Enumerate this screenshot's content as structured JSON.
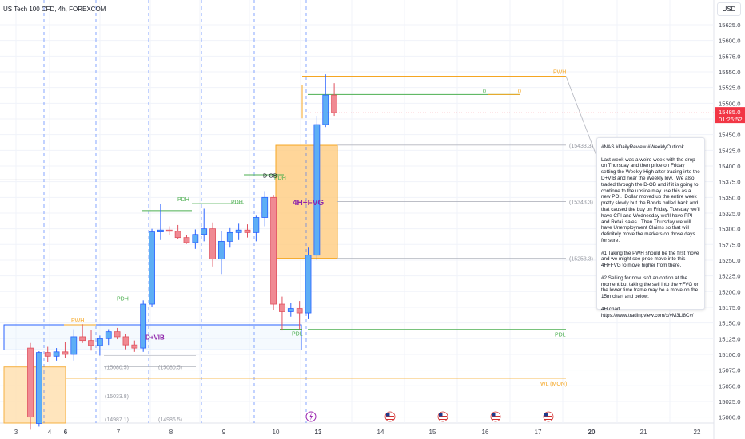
{
  "header": {
    "title": "US Tech 100 CFD, 4h, FOREXCOM",
    "currency": "USD"
  },
  "price_axis": {
    "ticks": [
      "15625.0",
      "15600.0",
      "15575.0",
      "15550.0",
      "15525.0",
      "15500.0",
      "15475.0",
      "15450.0",
      "15425.0",
      "15400.0",
      "15375.0",
      "15350.0",
      "15325.0",
      "15300.0",
      "15275.0",
      "15250.0",
      "15225.0",
      "15200.0",
      "15175.0",
      "15150.0",
      "15125.0",
      "15100.0",
      "15075.0",
      "15050.0",
      "15025.0",
      "15000.0"
    ],
    "current_price": "15485.0",
    "countdown": "01:26:52",
    "current_color": "#f23645"
  },
  "time_axis": {
    "labels": [
      "3",
      "4",
      "6",
      "7",
      "8",
      "9",
      "10",
      "13",
      "14",
      "15",
      "16",
      "17",
      "20",
      "21",
      "22"
    ]
  },
  "note": {
    "text": "#NAS #DailyReview #WeeklyOutlook\n\nLast week was a weird week with the drop on Thursday and then price on Friday setting the Weekly High after trading into the D+VIB and near the Weekly low.  We also traded through the D-OB and if it is going to continue to the upside may use this as a new POI.  Dollar moved up the entire week pretty slowly but the Bonds pulled back and that caused the buy on Friday. Tuesday we'll have CPI and Wednesday we'll have PPI and Retail sales.  Then Thursday we will have Unemployment Claims so that will definitely move the markets on those days for sure.\n\n#1 Taking the PWH should be the first move and we might see price move into this 4H+FVG to move higher from there.\n\n#2 Selling for now isn't an option at the moment but taking the sell into the +FVG on the lower time frame may be a move on the 15m chart and below.\n\n4H chart https://www.tradingview.com/x/vM3Li8Cv/"
  },
  "chart_data": {
    "type": "candlestick",
    "title": "US Tech 100 CFD, 4h, FOREXCOM",
    "timeframe": "4h",
    "ylim": [
      14984,
      15648
    ],
    "colors": {
      "up": "#5eaef5",
      "down": "#f08a93",
      "up_border": "#2962ff",
      "down_border": "#e0525f"
    },
    "candles": [
      {
        "o": 15110,
        "h": 15118,
        "l": 14980,
        "c": 15000
      },
      {
        "o": 14990,
        "h": 15105,
        "l": 14985,
        "c": 15103
      },
      {
        "o": 15103,
        "h": 15112,
        "l": 15088,
        "c": 15097
      },
      {
        "o": 15097,
        "h": 15110,
        "l": 15090,
        "c": 15104
      },
      {
        "o": 15104,
        "h": 15120,
        "l": 15094,
        "c": 15100
      },
      {
        "o": 15100,
        "h": 15140,
        "l": 15090,
        "c": 15128
      },
      {
        "o": 15128,
        "h": 15148,
        "l": 15118,
        "c": 15122
      },
      {
        "o": 15122,
        "h": 15139,
        "l": 15106,
        "c": 15114
      },
      {
        "o": 15114,
        "h": 15130,
        "l": 15098,
        "c": 15125
      },
      {
        "o": 15125,
        "h": 15140,
        "l": 15115,
        "c": 15136
      },
      {
        "o": 15136,
        "h": 15142,
        "l": 15124,
        "c": 15128
      },
      {
        "o": 15128,
        "h": 15132,
        "l": 15108,
        "c": 15115
      },
      {
        "o": 15115,
        "h": 15122,
        "l": 15104,
        "c": 15110
      },
      {
        "o": 15110,
        "h": 15186,
        "l": 15104,
        "c": 15180
      },
      {
        "o": 15180,
        "h": 15300,
        "l": 15176,
        "c": 15295
      },
      {
        "o": 15295,
        "h": 15340,
        "l": 15282,
        "c": 15298
      },
      {
        "o": 15298,
        "h": 15304,
        "l": 15290,
        "c": 15296
      },
      {
        "o": 15296,
        "h": 15306,
        "l": 15284,
        "c": 15286
      },
      {
        "o": 15286,
        "h": 15290,
        "l": 15276,
        "c": 15278
      },
      {
        "o": 15278,
        "h": 15299,
        "l": 15268,
        "c": 15291
      },
      {
        "o": 15291,
        "h": 15332,
        "l": 15280,
        "c": 15300
      },
      {
        "o": 15300,
        "h": 15310,
        "l": 15240,
        "c": 15252
      },
      {
        "o": 15252,
        "h": 15297,
        "l": 15228,
        "c": 15280
      },
      {
        "o": 15280,
        "h": 15301,
        "l": 15270,
        "c": 15294
      },
      {
        "o": 15294,
        "h": 15308,
        "l": 15282,
        "c": 15298
      },
      {
        "o": 15298,
        "h": 15307,
        "l": 15286,
        "c": 15294
      },
      {
        "o": 15294,
        "h": 15322,
        "l": 15280,
        "c": 15318
      },
      {
        "o": 15318,
        "h": 15360,
        "l": 15304,
        "c": 15350
      },
      {
        "o": 15350,
        "h": 15354,
        "l": 15170,
        "c": 15180
      },
      {
        "o": 15180,
        "h": 15192,
        "l": 15138,
        "c": 15168
      },
      {
        "o": 15168,
        "h": 15182,
        "l": 15160,
        "c": 15173
      },
      {
        "o": 15173,
        "h": 15185,
        "l": 15140,
        "c": 15166
      },
      {
        "o": 15166,
        "h": 15270,
        "l": 15156,
        "c": 15258
      },
      {
        "o": 15258,
        "h": 15480,
        "l": 15250,
        "c": 15466
      },
      {
        "o": 15466,
        "h": 15546,
        "l": 15462,
        "c": 15513
      },
      {
        "o": 15513,
        "h": 15532,
        "l": 15480,
        "c": 15485
      }
    ],
    "levels": [
      {
        "label": "PWH",
        "price": 15543
      },
      {
        "label": "PDL",
        "price": 15140
      },
      {
        "label": "WL (MON)",
        "price": 15062
      },
      {
        "label": "(15433.3)",
        "price": 15433.3
      },
      {
        "label": "(15343.3)",
        "price": 15343.3
      },
      {
        "label": "(15253.3)",
        "price": 15253.3
      },
      {
        "label": "(15080.5)",
        "price": 15080.5
      },
      {
        "label": "(15033.8)",
        "price": 15033.8
      },
      {
        "label": "(14987.1)",
        "price": 14987.1
      },
      {
        "label": "(14986.5)",
        "price": 14986.5
      }
    ],
    "zones": [
      {
        "label": "4H+FVG",
        "top": 15433,
        "bottom": 15253
      },
      {
        "label": "D+VIB",
        "top": 15147,
        "bottom": 15107
      }
    ],
    "annotations": [
      "PWH",
      "PDH",
      "PDH",
      "PDH",
      "PDL",
      "PDL",
      "D-OB",
      "WL (MON)",
      "4H+FVG",
      "D+VIB",
      "0",
      "0"
    ],
    "events": [
      "lightning",
      "us-flag",
      "us-flag",
      "us-flag",
      "us-flag"
    ],
    "grid": true
  }
}
